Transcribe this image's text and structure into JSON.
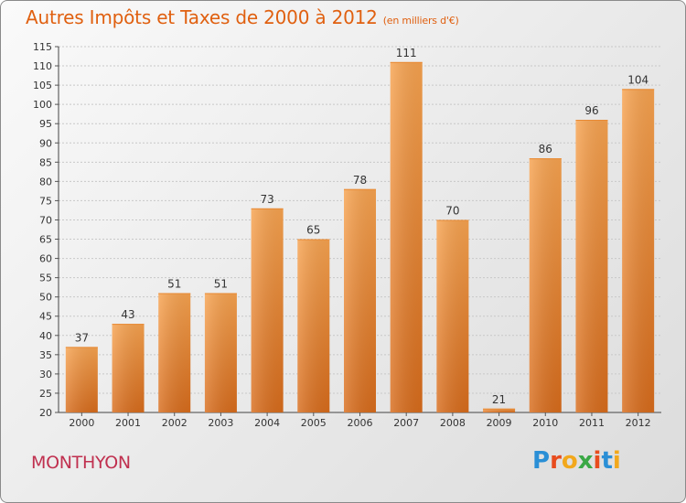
{
  "header": {
    "title": "Autres Impôts et Taxes de 2000 à 2012",
    "unit": "(en milliers d'€)"
  },
  "footer": {
    "commune": "MONTHYON",
    "logo_text": "Proxiti"
  },
  "colors": {
    "title": "#e06010",
    "commune": "#c0304f",
    "bar_light": "#f7a350",
    "bar_dark": "#d86c1c",
    "logo_letters": [
      "#2a8fd6",
      "#e84c1e",
      "#f2a81c",
      "#3aa845",
      "#e84c1e",
      "#2a8fd6",
      "#f2a81c"
    ]
  },
  "chart_data": {
    "type": "bar",
    "title": "Autres Impôts et Taxes de 2000 à 2012",
    "subtitle": "(en milliers d'€)",
    "categories": [
      "2000",
      "2001",
      "2002",
      "2003",
      "2004",
      "2005",
      "2006",
      "2007",
      "2008",
      "2009",
      "2010",
      "2011",
      "2012"
    ],
    "values": [
      37,
      43,
      51,
      51,
      73,
      65,
      78,
      111,
      70,
      21,
      86,
      96,
      104
    ],
    "ylim": [
      20,
      115
    ],
    "yticks": [
      20,
      25,
      30,
      35,
      40,
      45,
      50,
      55,
      60,
      65,
      70,
      75,
      80,
      85,
      90,
      95,
      100,
      105,
      110,
      115
    ],
    "grid": true
  }
}
